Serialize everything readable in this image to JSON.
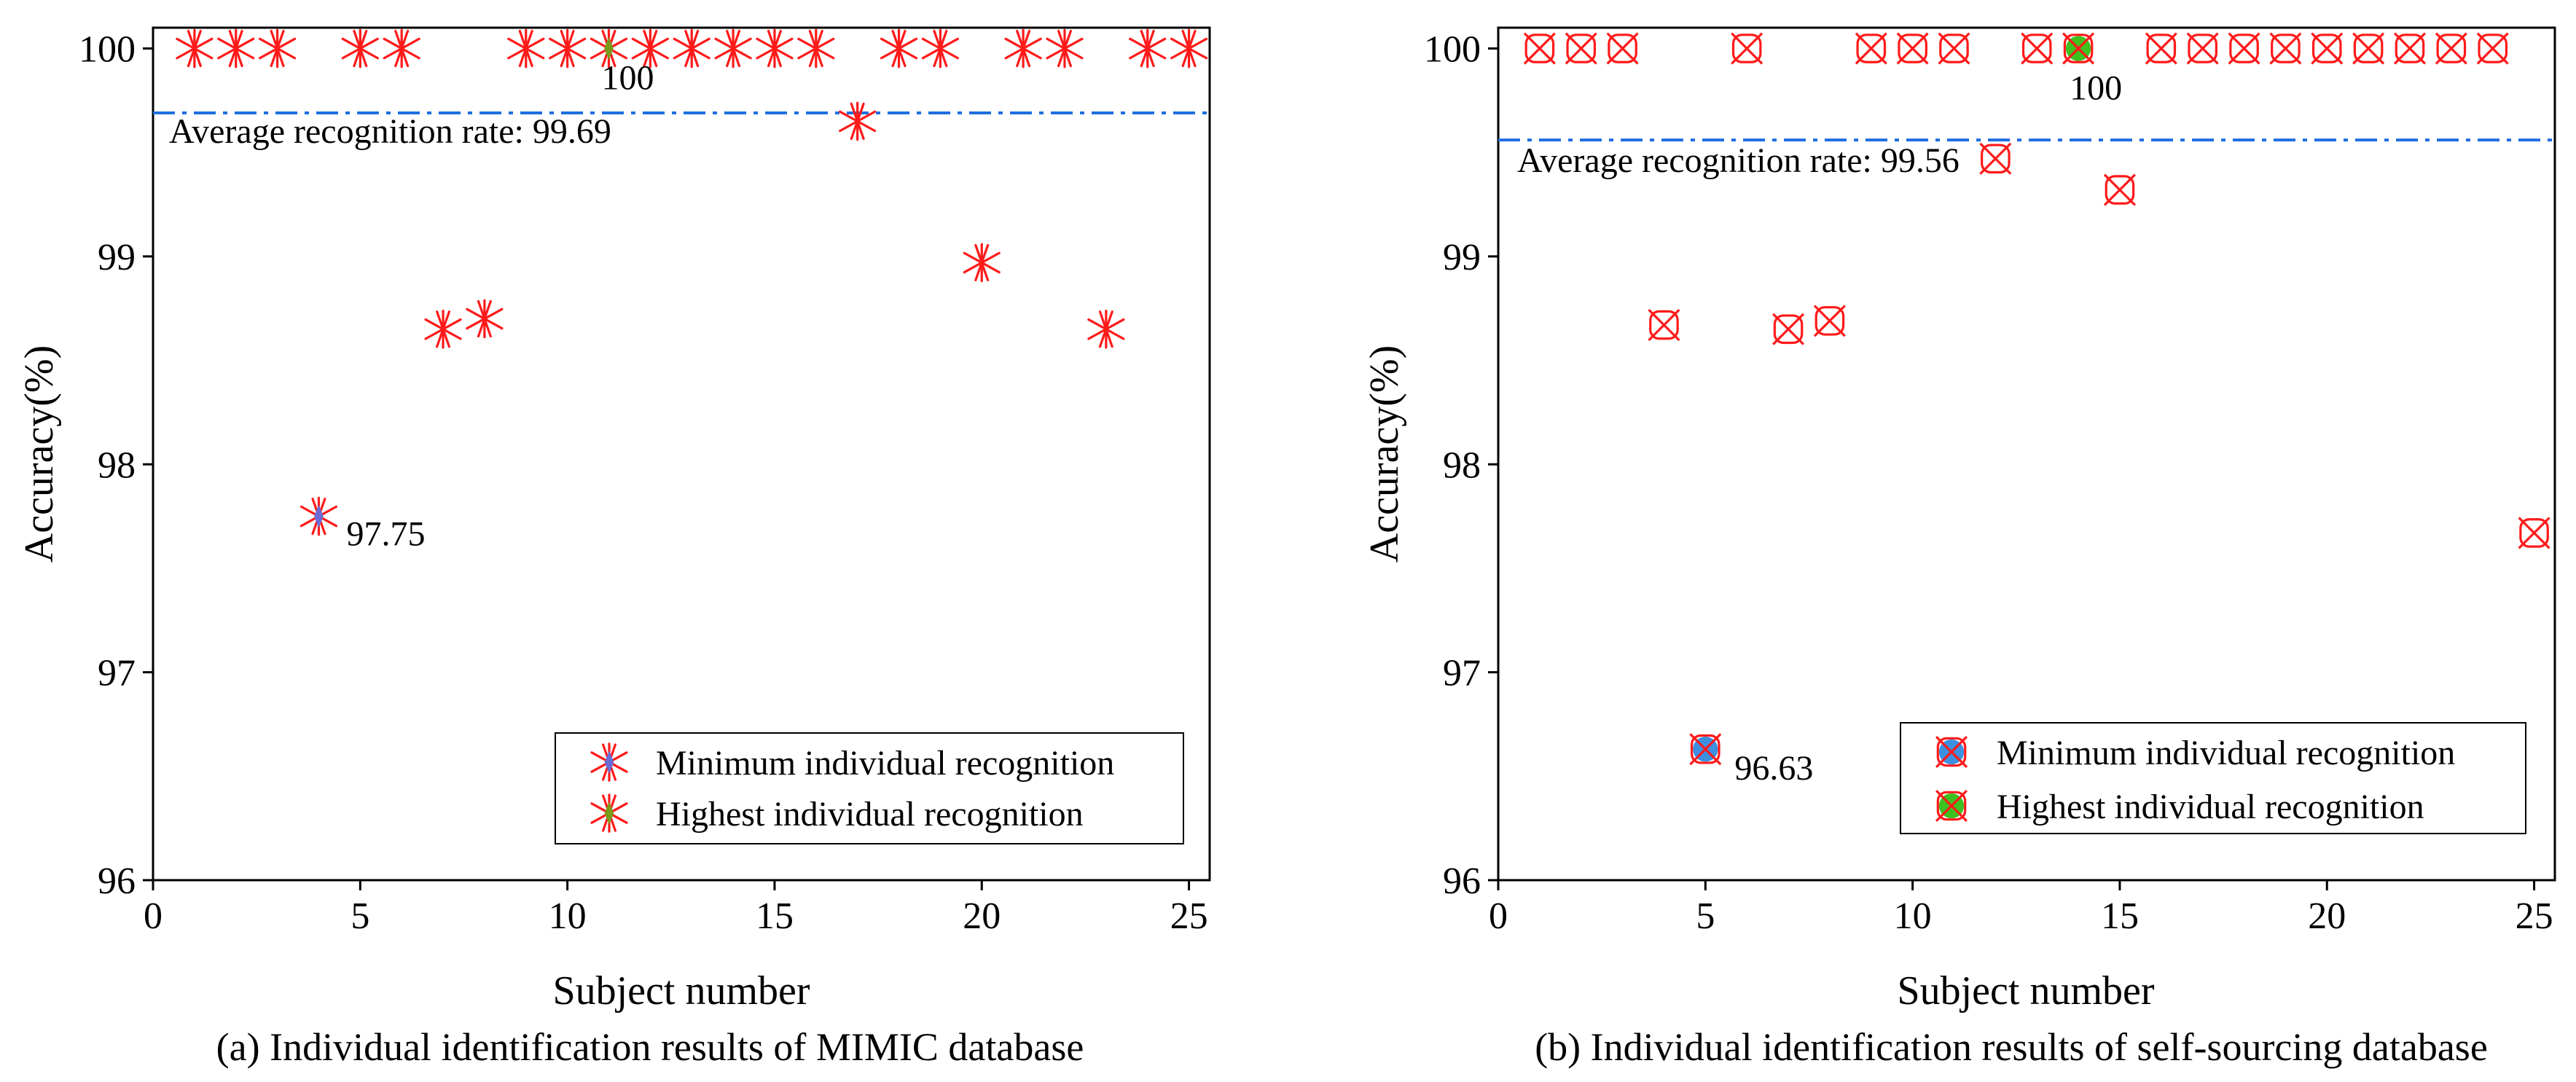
{
  "chart_data": [
    {
      "panel": "a",
      "type": "scatter",
      "caption": "(a) Individual identification results of MIMIC database",
      "xlabel": "Subject number",
      "ylabel": "Accuracy(%)",
      "xlim": [
        0,
        25.5
      ],
      "ylim": [
        96,
        100.1
      ],
      "xticks": [
        0,
        5,
        10,
        15,
        20,
        25
      ],
      "yticks": [
        96,
        97,
        98,
        99,
        100
      ],
      "marker": "star",
      "x": [
        1,
        2,
        3,
        4,
        5,
        6,
        7,
        8,
        9,
        10,
        11,
        12,
        13,
        14,
        15,
        16,
        17,
        18,
        19,
        20,
        21,
        22,
        23,
        24,
        25
      ],
      "values": [
        100,
        100,
        100,
        97.75,
        100,
        100,
        98.65,
        98.7,
        100,
        100,
        100,
        100,
        100,
        100,
        100,
        100,
        99.65,
        100,
        100,
        98.97,
        100,
        100,
        98.65,
        100,
        100
      ],
      "min_point": {
        "x": 4,
        "y": 97.75,
        "label": "97.75"
      },
      "max_point": {
        "x": 11,
        "y": 100,
        "label": "100"
      },
      "average": {
        "value": 99.69,
        "label": "Average recognition rate: 99.69"
      },
      "legend": [
        "Minimum individual recognition",
        "Highest individual recognition"
      ],
      "colors": {
        "marker": "#ff1a1a",
        "min_fill": "#6b6bd6",
        "max_fill": "#7a9a1a",
        "average": "#1f6fe0"
      }
    },
    {
      "panel": "b",
      "type": "scatter",
      "caption": "(b) Individual identification results of self-sourcing database",
      "xlabel": "Subject number",
      "ylabel": "Accuracy(%)",
      "xlim": [
        0,
        25.5
      ],
      "ylim": [
        96,
        100.1
      ],
      "xticks": [
        0,
        5,
        10,
        15,
        20,
        25
      ],
      "yticks": [
        96,
        97,
        98,
        99,
        100
      ],
      "marker": "boxx",
      "x": [
        1,
        2,
        3,
        4,
        5,
        6,
        7,
        8,
        9,
        10,
        11,
        12,
        13,
        14,
        15,
        16,
        17,
        18,
        19,
        20,
        21,
        22,
        23,
        24,
        25
      ],
      "values": [
        100,
        100,
        100,
        98.67,
        96.63,
        100,
        98.65,
        98.69,
        100,
        100,
        100,
        99.47,
        100,
        100,
        99.32,
        100,
        100,
        100,
        100,
        100,
        100,
        100,
        100,
        100,
        97.67
      ],
      "min_point": {
        "x": 5,
        "y": 96.63,
        "label": "96.63"
      },
      "max_point": {
        "x": 14,
        "y": 100,
        "label": "100"
      },
      "average": {
        "value": 99.56,
        "label": "Average recognition rate: 99.56"
      },
      "legend": [
        "Minimum individual recognition",
        "Highest individual recognition"
      ],
      "colors": {
        "marker": "#ff1a1a",
        "min_fill": "#3d8fe0",
        "max_fill": "#3ec01e",
        "average": "#1f6fe0"
      }
    }
  ]
}
